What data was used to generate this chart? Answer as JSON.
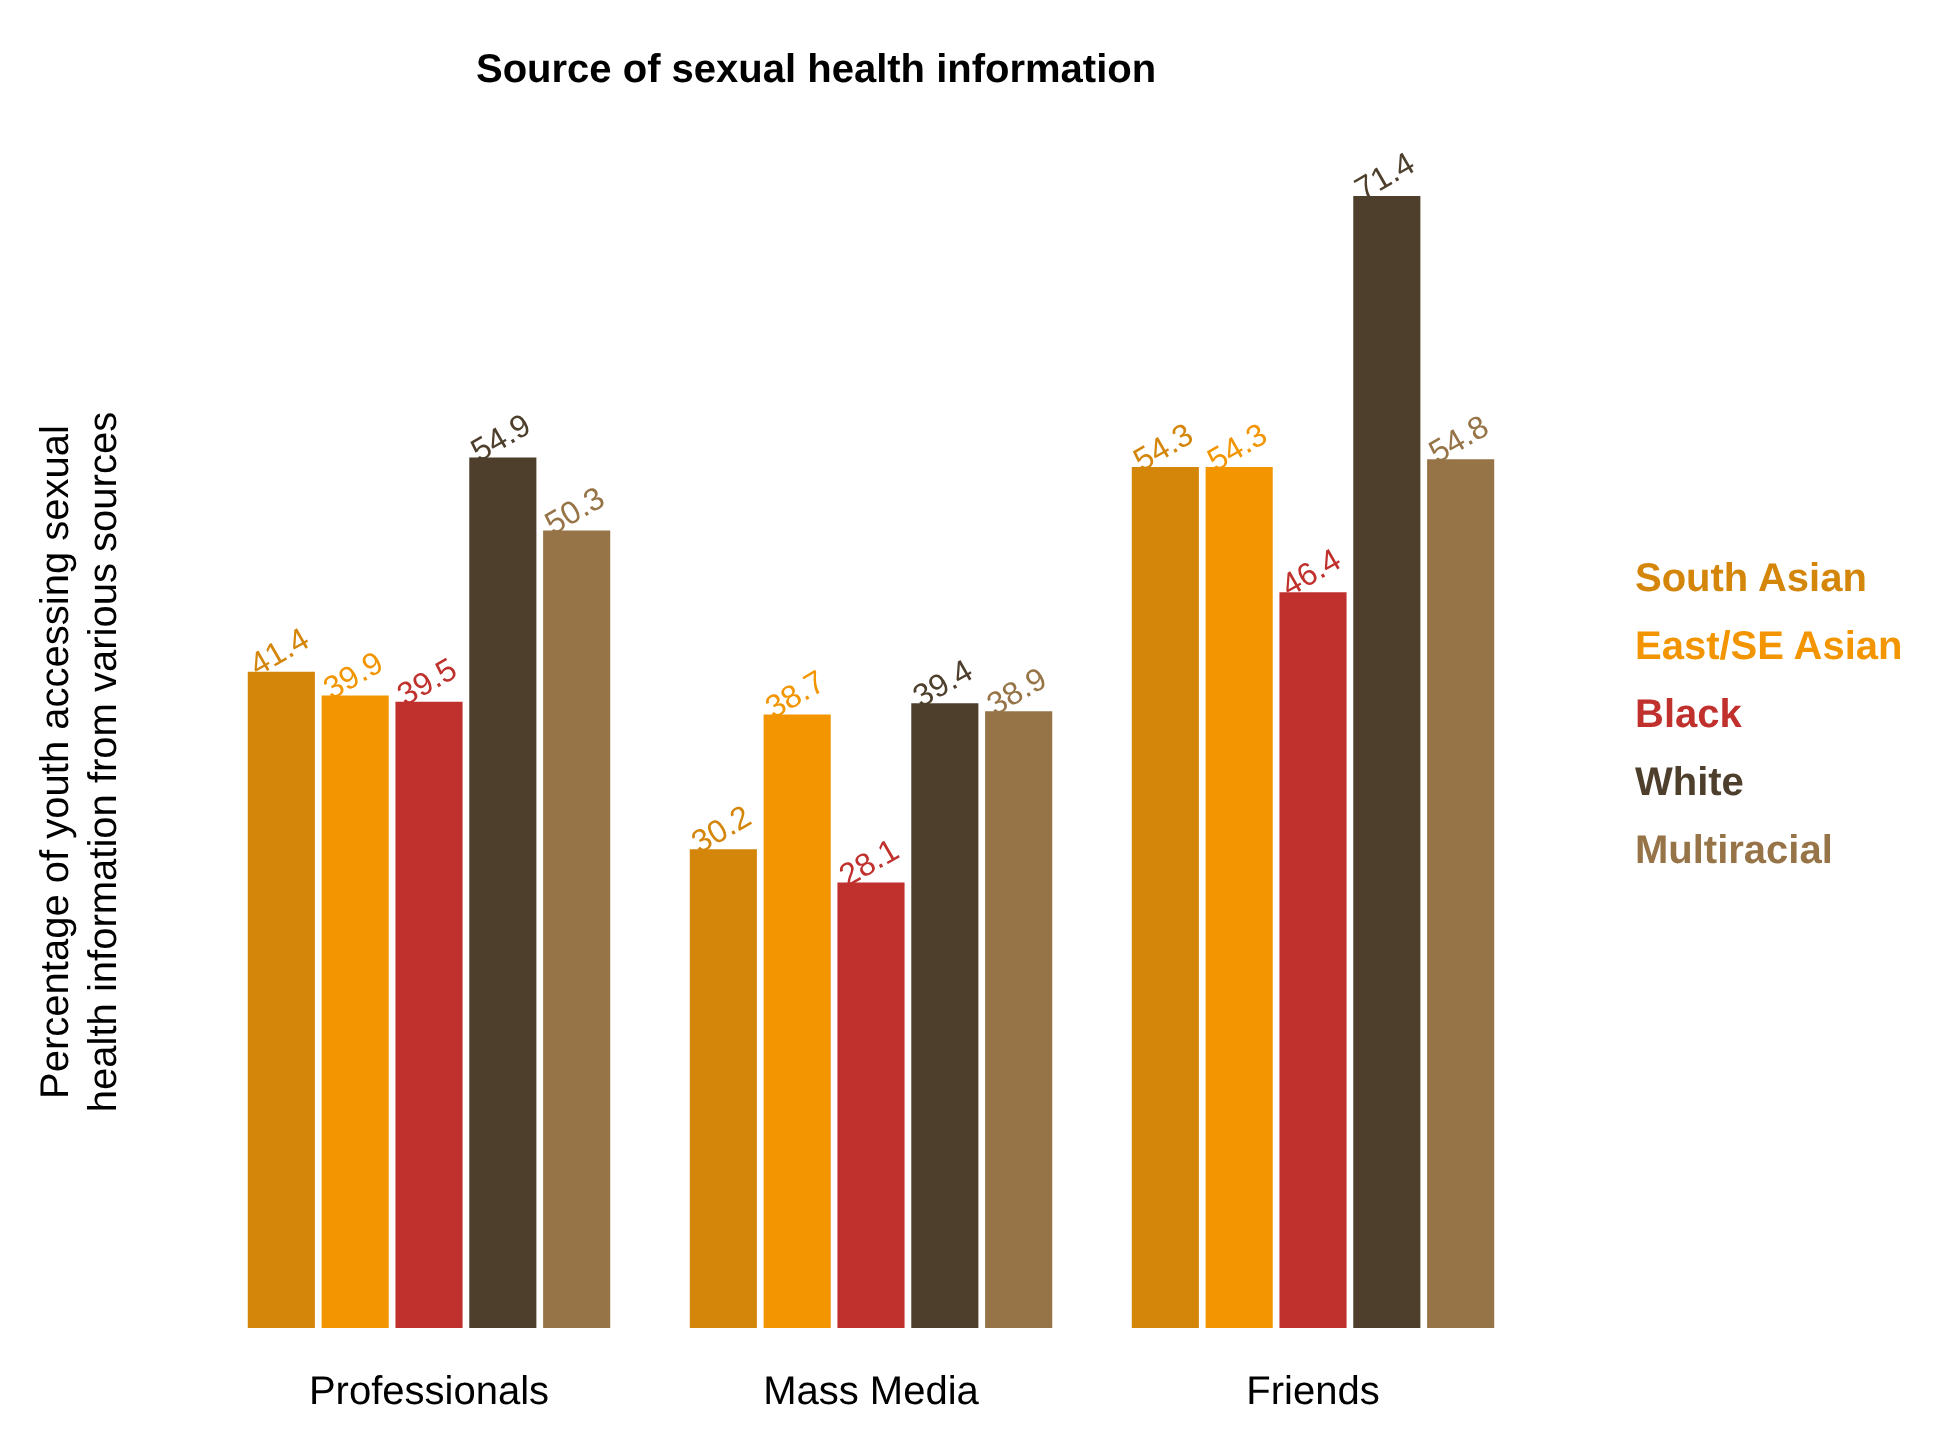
{
  "chart_data": {
    "type": "bar",
    "title": "Source of sexual health information",
    "ylabel": "Percentage of youth accessing sexual\nhealth information from various sources",
    "categories": [
      "Professionals",
      "Mass Media",
      "Friends"
    ],
    "series": [
      {
        "name": "South Asian",
        "color": "#d4860b",
        "values": [
          41.4,
          30.2,
          54.3
        ]
      },
      {
        "name": "East/SE Asian",
        "color": "#f29500",
        "values": [
          39.9,
          38.7,
          54.3
        ]
      },
      {
        "name": "Black",
        "color": "#c0302c",
        "values": [
          39.5,
          28.1,
          46.4
        ]
      },
      {
        "name": "White",
        "color": "#4e3f2c",
        "values": [
          54.9,
          39.4,
          71.4
        ]
      },
      {
        "name": "Multiracial",
        "color": "#967447",
        "values": [
          50.3,
          38.9,
          54.8
        ]
      }
    ],
    "data_labels": true,
    "legend": "right",
    "grid": false
  }
}
